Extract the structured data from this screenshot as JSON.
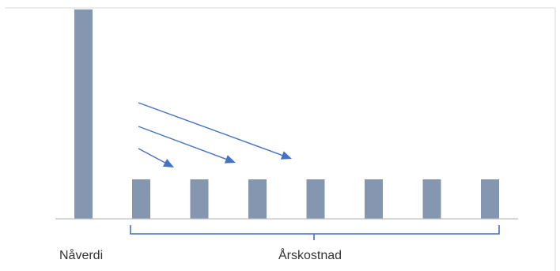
{
  "labels": {
    "present_value": "Nåverdi",
    "annual_cost": "Årskostnad"
  },
  "diagram": {
    "bar_color": "#8496B0",
    "arrow_color": "#4472C4",
    "brace_color": "#4472C4",
    "axis_color": "#BFBFBF",
    "frame_color": "#D9D9D9",
    "present_value_height": 5.3,
    "annual_cost_height": 1,
    "annual_cost_count": 7,
    "arrow_count": 3
  }
}
